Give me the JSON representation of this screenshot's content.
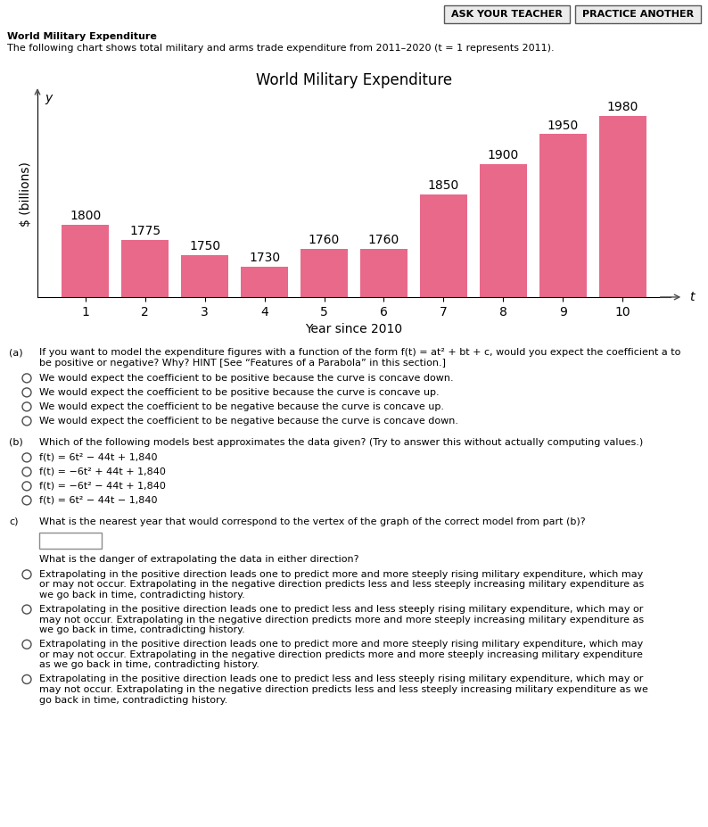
{
  "chart_data": {
    "type": "bar",
    "title": "World Military Expenditure",
    "xlabel": "Year since 2010",
    "ylabel": "$ (billions)",
    "x": [
      1,
      2,
      3,
      4,
      5,
      6,
      7,
      8,
      9,
      10
    ],
    "values": [
      1800,
      1775,
      1750,
      1730,
      1760,
      1760,
      1850,
      1900,
      1950,
      1980
    ],
    "color": "#e8698a",
    "xlim": [
      0.2,
      10.8
    ],
    "xticks": [
      1,
      2,
      3,
      4,
      5,
      6,
      7,
      8,
      9,
      10
    ],
    "ylim": [
      1680,
      2020
    ],
    "yticks": [],
    "tick_labels": "x",
    "data_labels": true,
    "grid": false,
    "annotations": [
      "t",
      "y"
    ]
  },
  "annotations": [
    [
      "ASK YOUR TEACHER",
      "PRACTICE ANOTHER"
    ],
    [
      "World Military Expenditure",
      "The following chart shows total military and arms trade expenditure from 2011–2020 (t = 1 represents 2011)."
    ],
    [
      "(a)",
      "If you want to model the expenditure figures with a function of the form f(t) = at² + bt + c, would you expect the coefficient a to\nbe positive or negative? Why? HINT [See “Features of a Parabola” in this section.]",
      "We would expect the coefficient to be positive because the curve is concave down.",
      "We would expect the coefficient to be positive because the curve is concave up.",
      "We would expect the coefficient to be negative because the curve is concave up.",
      "We would expect the coefficient to be negative because the curve is concave down."
    ],
    [
      "(b)",
      "Which of the following models best approximates the data given? (Try to answer this without actually computing values.)",
      "f(t) = 6t² − 44t + 1,840",
      "f(t) = −6t² + 44t + 1,840",
      "f(t) = −6t² − 44t + 1,840",
      "f(t) = 6t² − 44t − 1,840"
    ],
    [
      "c)",
      "What is the nearest year that would correspond to the vertex of the graph of the correct model from part (b)?",
      "What is the danger of extrapolating the data in either direction?",
      "Extrapolating in the positive direction leads one to predict more and more steeply rising military expenditure, which may\nor may not occur. Extrapolating in the negative direction predicts less and less steeply increasing military expenditure as\nwe go back in time, contradicting history.",
      "Extrapolating in the positive direction leads one to predict less and less steeply rising military expenditure, which may or\nmay not occur. Extrapolating in the negative direction predicts more and more steeply increasing military expenditure as\nwe go back in time, contradicting history.",
      "Extrapolating in the positive direction leads one to predict more and more steeply rising military expenditure, which may\nor may not occur. Extrapolating in the negative direction predicts more and more steeply increasing military expenditure\nas we go back in time, contradicting history.",
      "Extrapolating in the positive direction leads one to predict less and less steeply rising military expenditure, which may or\nmay not occur. Extrapolating in the negative direction predicts less and less steeply increasing military expenditure as we\ngo back in time, contradicting history."
    ]
  ]
}
